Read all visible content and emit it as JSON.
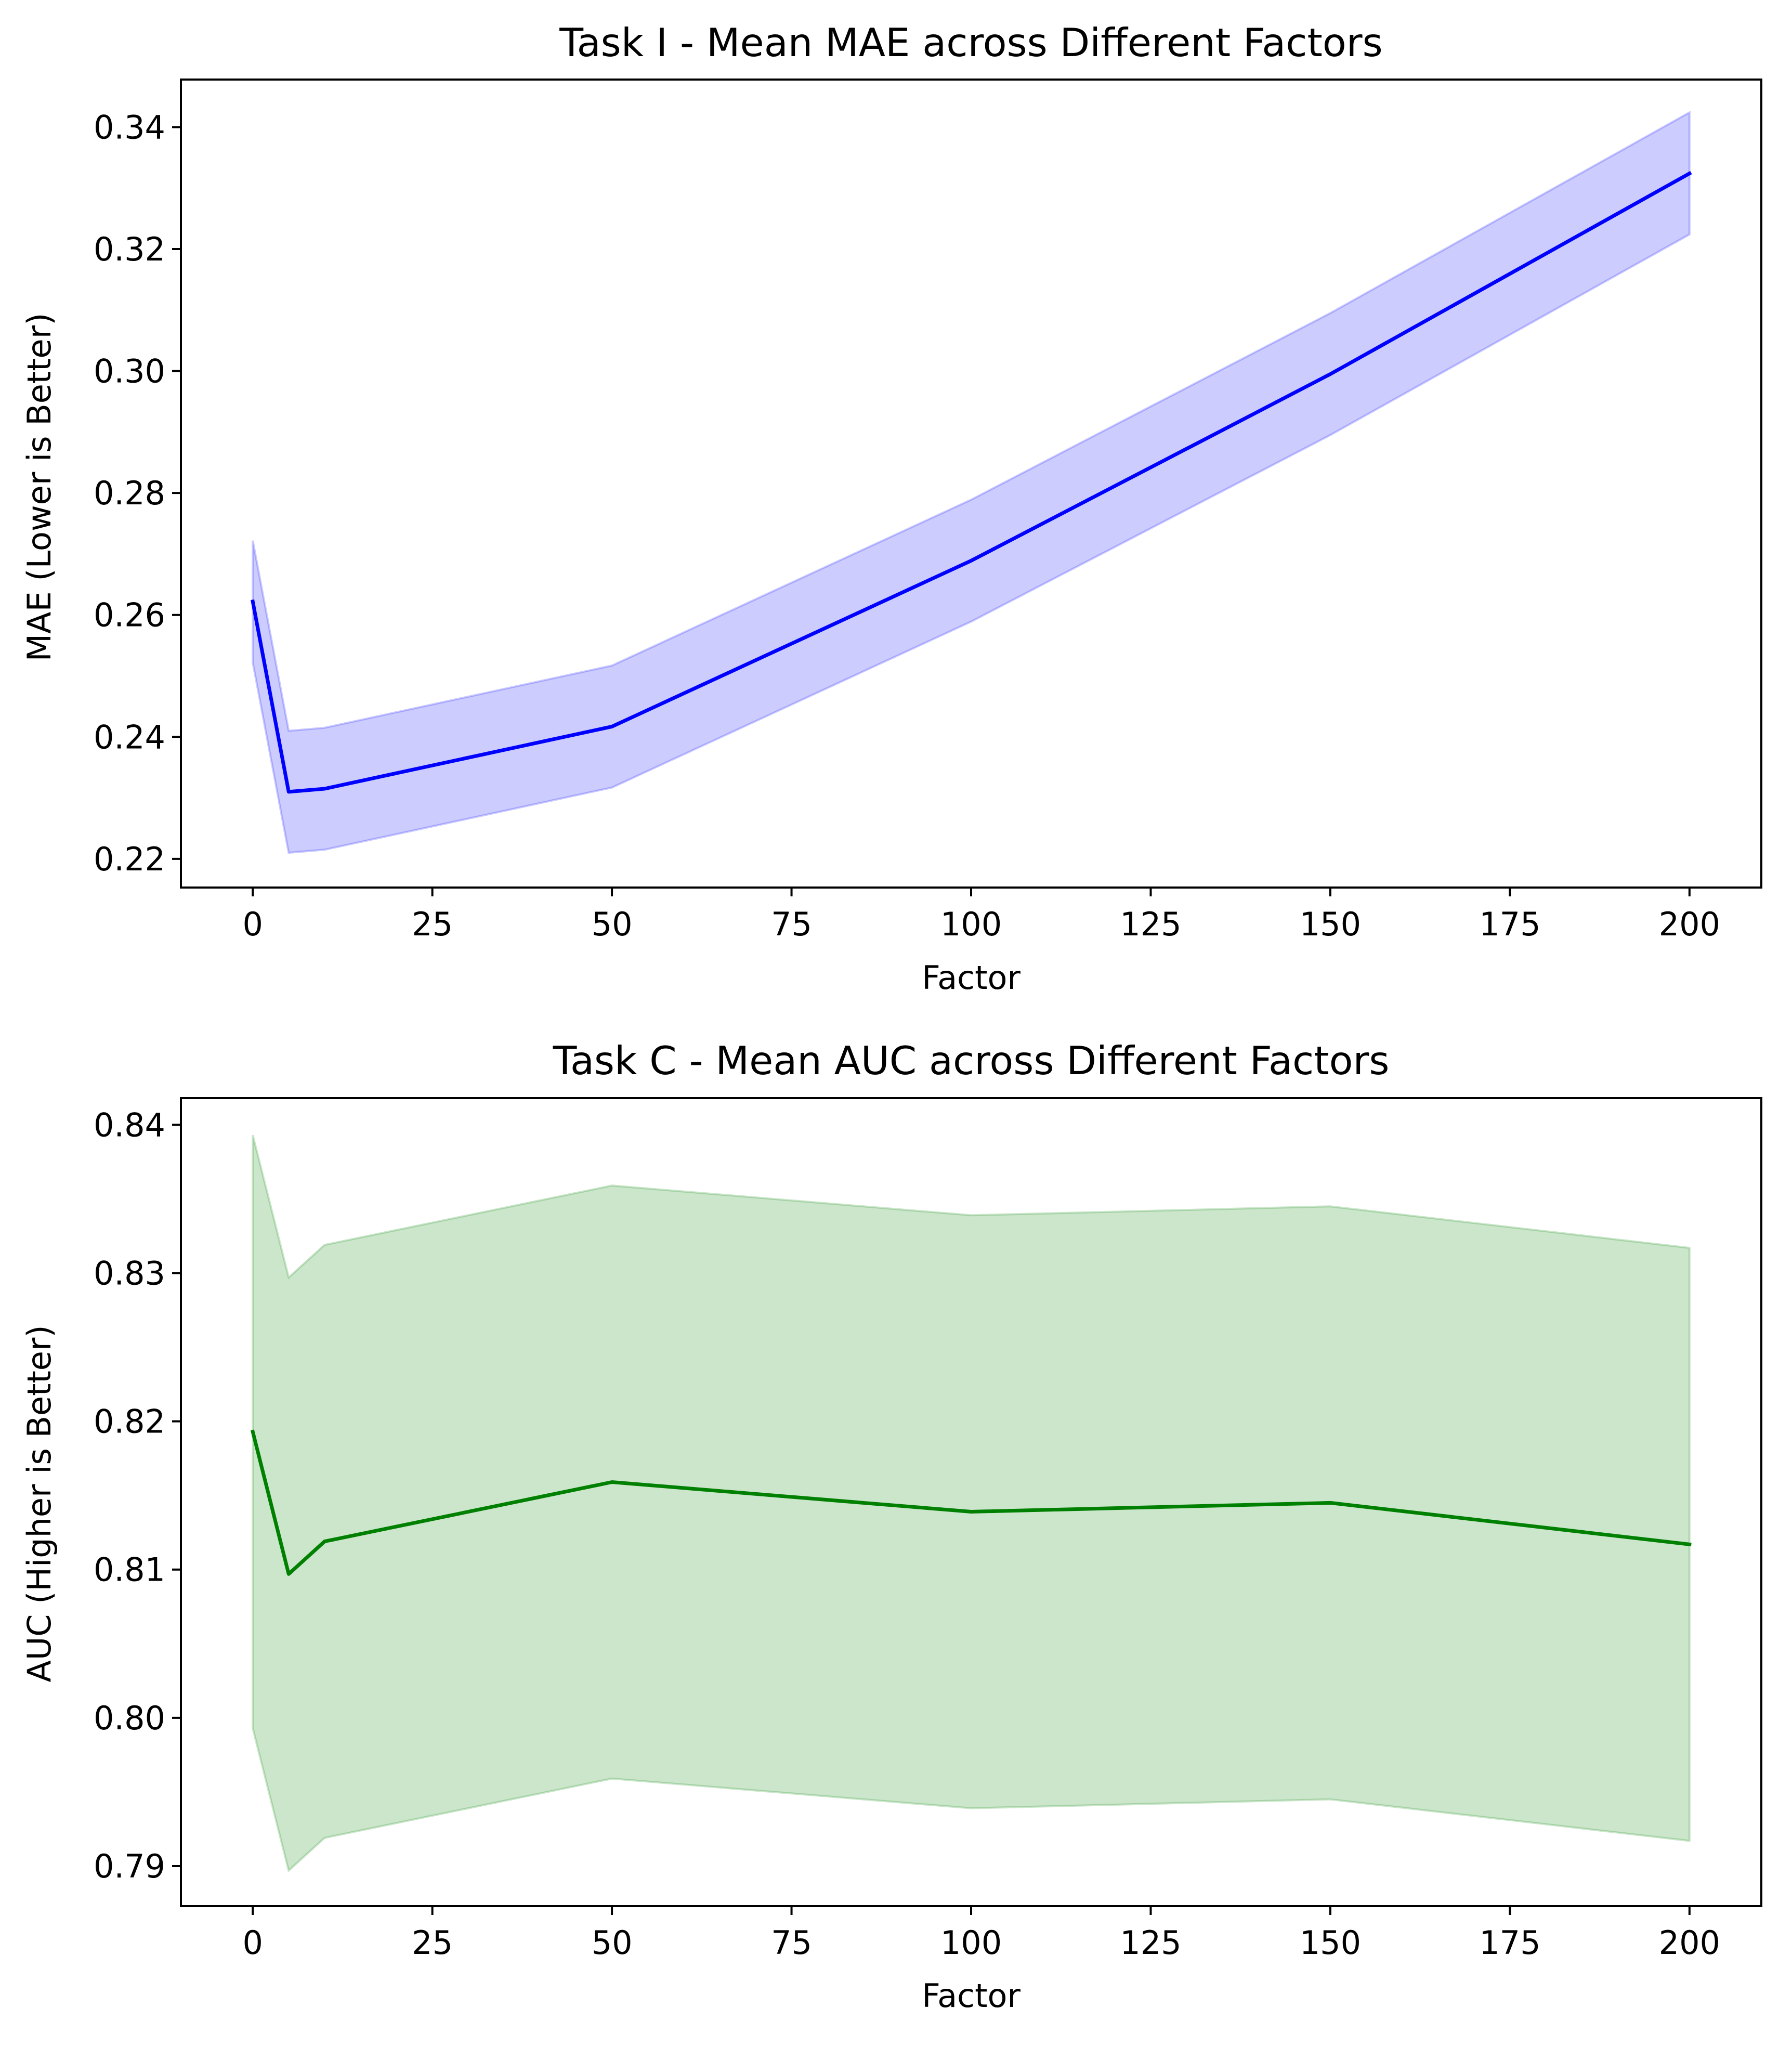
{
  "chart_data": [
    {
      "type": "line",
      "title": "Task I - Mean MAE across Different Factors",
      "xlabel": "Factor",
      "ylabel": "MAE (Lower is Better)",
      "xlim": [
        -10,
        210
      ],
      "ylim": [
        0.2153,
        0.3478
      ],
      "xticks": [
        0,
        25,
        50,
        75,
        100,
        125,
        150,
        175,
        200
      ],
      "xtick_labels": [
        "0",
        "25",
        "50",
        "75",
        "100",
        "125",
        "150",
        "175",
        "200"
      ],
      "yticks": [
        0.22,
        0.24,
        0.26,
        0.28,
        0.3,
        0.32,
        0.34
      ],
      "ytick_labels": [
        "0.22",
        "0.24",
        "0.26",
        "0.28",
        "0.30",
        "0.32",
        "0.34"
      ],
      "grid": false,
      "series": [
        {
          "color": "#0000ff",
          "band_color": "#0000ff",
          "x": [
            0,
            5,
            10,
            50,
            100,
            150,
            200
          ],
          "values": [
            0.2622,
            0.231,
            0.2315,
            0.2417,
            0.2689,
            0.2995,
            0.3324
          ],
          "lower": [
            0.2522,
            0.221,
            0.2215,
            0.2317,
            0.2589,
            0.2895,
            0.3224
          ],
          "upper": [
            0.2722,
            0.241,
            0.2415,
            0.2517,
            0.2789,
            0.3095,
            0.3424
          ]
        }
      ]
    },
    {
      "type": "line",
      "title": "Task C - Mean AUC across Different Factors",
      "xlabel": "Factor",
      "ylabel": "AUC (Higher is Better)",
      "xlim": [
        -10,
        210
      ],
      "ylim": [
        0.7873,
        0.8418
      ],
      "xticks": [
        0,
        25,
        50,
        75,
        100,
        125,
        150,
        175,
        200
      ],
      "xtick_labels": [
        "0",
        "25",
        "50",
        "75",
        "100",
        "125",
        "150",
        "175",
        "200"
      ],
      "yticks": [
        0.79,
        0.8,
        0.81,
        0.82,
        0.83,
        0.84
      ],
      "ytick_labels": [
        "0.79",
        "0.80",
        "0.81",
        "0.82",
        "0.83",
        "0.84"
      ],
      "grid": false,
      "series": [
        {
          "color": "#008000",
          "band_color": "#008000",
          "x": [
            0,
            5,
            10,
            50,
            100,
            150,
            200
          ],
          "values": [
            0.8193,
            0.8097,
            0.8119,
            0.8159,
            0.8139,
            0.8145,
            0.8117
          ],
          "lower": [
            0.7993,
            0.7897,
            0.7919,
            0.7959,
            0.7939,
            0.7945,
            0.7917
          ],
          "upper": [
            0.8393,
            0.8297,
            0.8319,
            0.8359,
            0.8339,
            0.8345,
            0.8317
          ]
        }
      ]
    }
  ]
}
